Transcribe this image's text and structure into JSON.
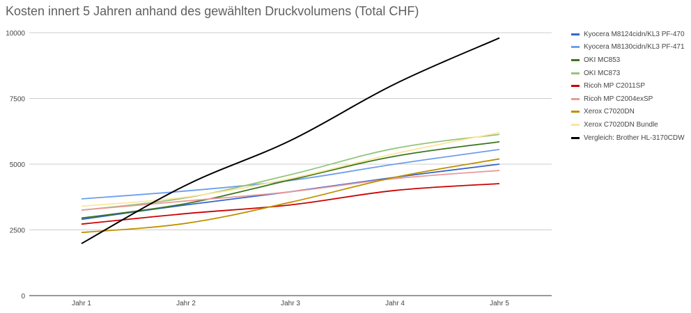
{
  "chart_data": {
    "type": "line",
    "title": "Kosten innert 5 Jahren anhand des gewählten Druckvolumens (Total CHF)",
    "xlabel": "",
    "ylabel": "",
    "categories": [
      "Jahr 1",
      "Jahr 2",
      "Jahr 3",
      "Jahr 4",
      "Jahr 5"
    ],
    "ylim": [
      0,
      10000
    ],
    "yticks": [
      "0",
      "2500",
      "5000",
      "7500",
      "10000"
    ],
    "grid": true,
    "legend_position": "right",
    "series": [
      {
        "name": "Kyocera M8124cidn/KL3 PF-470",
        "color": "#3366cc",
        "values": [
          2900,
          3450,
          3950,
          4500,
          5000
        ]
      },
      {
        "name": "Kyocera M8130cidn/KL3 PF-471",
        "color": "#6d9eeb",
        "values": [
          3680,
          3980,
          4380,
          5000,
          5560
        ]
      },
      {
        "name": "OKI MC853",
        "color": "#38761d",
        "values": [
          2950,
          3500,
          4400,
          5300,
          5850
        ]
      },
      {
        "name": "OKI MC873",
        "color": "#93c47d",
        "values": [
          3250,
          3720,
          4600,
          5600,
          6130
        ]
      },
      {
        "name": "Ricoh MP C2011SP",
        "color": "#cc0000",
        "values": [
          2720,
          3120,
          3450,
          4000,
          4260
        ]
      },
      {
        "name": "Ricoh MP C2004exSP",
        "color": "#ea9999",
        "values": [
          3250,
          3600,
          3950,
          4450,
          4760
        ]
      },
      {
        "name": "Xerox C7020DN",
        "color": "#bf9000",
        "values": [
          2400,
          2750,
          3550,
          4500,
          5200
        ]
      },
      {
        "name": "Xerox C7020DN Bundle",
        "color": "#ffe599",
        "values": [
          3400,
          3750,
          4450,
          5400,
          6200
        ]
      },
      {
        "name": "Vergleich: Brother HL-3170CDW",
        "color": "#000000",
        "values": [
          1980,
          4200,
          5900,
          8050,
          9800
        ]
      }
    ]
  }
}
